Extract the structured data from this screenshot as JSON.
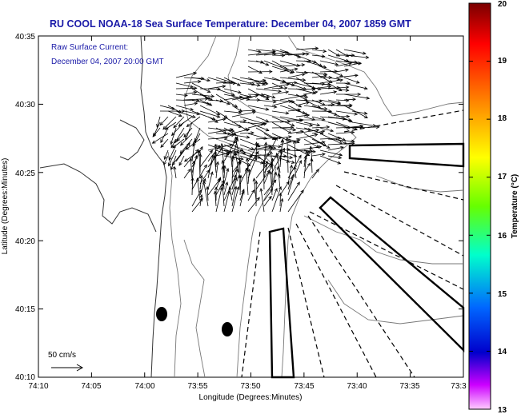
{
  "title": "RU COOL  NOAA-18  Sea Surface Temperature:  December 04, 2007 1859 GMT",
  "legend": {
    "line1": "Raw Surface Current:",
    "line2": "December 04, 2007 20:00 GMT"
  },
  "axes": {
    "xlabel": "Longitude (Degrees:Minutes)",
    "ylabel": "Latitude (Degrees:Minutes)",
    "xticks": [
      "74:10",
      "74:05",
      "74:00",
      "73:55",
      "73:50",
      "73:45",
      "73:40",
      "73:35",
      "73:3"
    ],
    "yticks": [
      "40:35",
      "40:30",
      "40:25",
      "40:20",
      "40:15",
      "40:10"
    ]
  },
  "colorbar": {
    "label": "Temperature (°C)",
    "ticks": [
      "20",
      "19",
      "18",
      "17",
      "16",
      "15",
      "14",
      "13"
    ],
    "min": 13,
    "max": 20
  },
  "scale_arrow": {
    "label": "50 cm/s"
  }
}
